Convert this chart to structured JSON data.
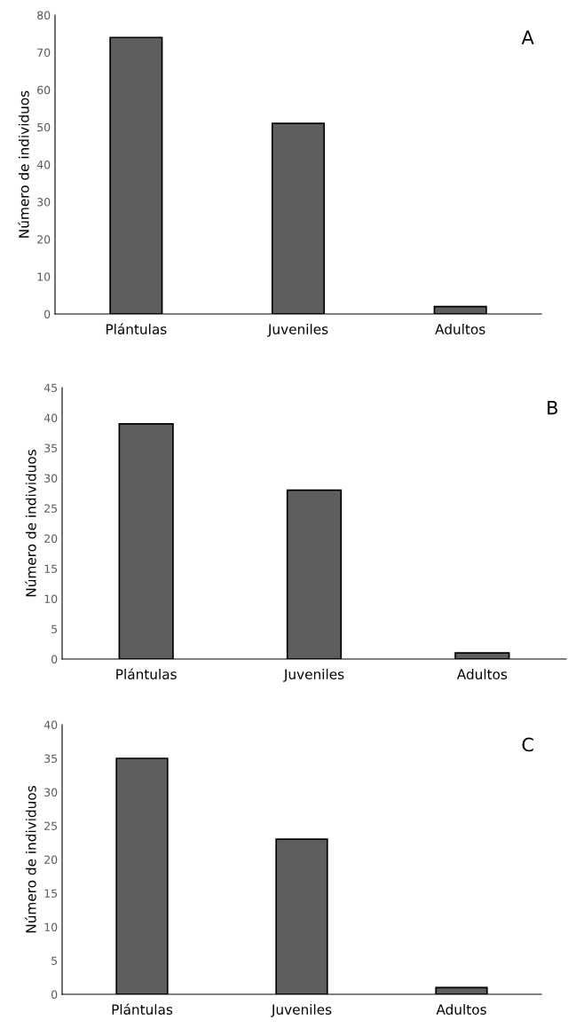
{
  "chart_data": [
    {
      "type": "bar",
      "categories": [
        "Plántulas",
        "Juveniles",
        "Adultos"
      ],
      "values": [
        74,
        51,
        2
      ],
      "color": "#5e5e5e",
      "ylabel": "Número de individuos",
      "ylim": [
        0,
        80
      ],
      "yticks": [
        0,
        10,
        20,
        30,
        40,
        50,
        60,
        70,
        80
      ],
      "grid": false,
      "annotations": [
        "A"
      ]
    },
    {
      "type": "bar",
      "categories": [
        "Plántulas",
        "Juveniles",
        "Adultos"
      ],
      "values": [
        39,
        28,
        1
      ],
      "color": "#5e5e5e",
      "ylabel": "Número de individuos",
      "ylim": [
        0,
        45
      ],
      "yticks": [
        0,
        5,
        10,
        15,
        20,
        25,
        30,
        35,
        40,
        45
      ],
      "grid": false,
      "annotations": [
        "B"
      ]
    },
    {
      "type": "bar",
      "categories": [
        "Plántulas",
        "Juveniles",
        "Adultos"
      ],
      "values": [
        35,
        23,
        1
      ],
      "color": "#5e5e5e",
      "ylabel": "Número de individuos",
      "ylim": [
        0,
        40
      ],
      "yticks": [
        0,
        5,
        10,
        15,
        20,
        25,
        30,
        35,
        40
      ],
      "grid": false,
      "annotations": [
        "C"
      ]
    }
  ]
}
